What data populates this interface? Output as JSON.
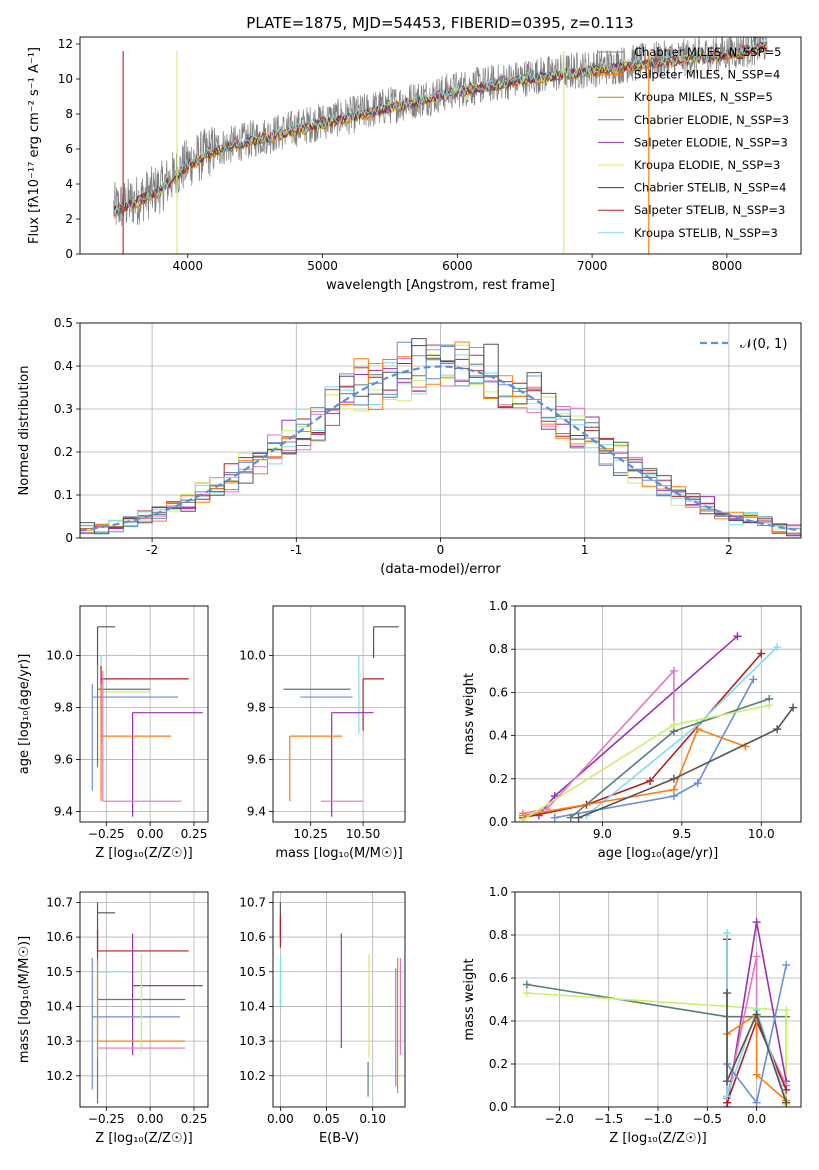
{
  "figure": {
    "title": "PLATE=1875, MJD=54453, FIBERID=0395, z=0.113"
  },
  "model_colors": [
    "#7f7f7f",
    "#ff7f0e",
    "#b8860b",
    "#4a7d5a",
    "#9b30b0",
    "#e6e64d",
    "#404040",
    "#b22222",
    "#80deea"
  ],
  "chart_data": [
    {
      "id": "spectrum",
      "type": "line",
      "xlabel": "wavelength [Angstrom, rest frame]",
      "ylabel": "Flux [fλ10⁻¹⁷ erg cm⁻² s⁻¹ A⁻¹]",
      "xlim": [
        3200,
        8550
      ],
      "ylim": [
        0,
        12.4
      ],
      "xticks": [
        4000,
        5000,
        6000,
        7000,
        8000
      ],
      "yticks": [
        0,
        2,
        4,
        6,
        8,
        10,
        12
      ],
      "grid": false,
      "legend_position": "top-right",
      "continuum_x": [
        3450,
        3600,
        3800,
        4000,
        4200,
        4500,
        4800,
        5000,
        5200,
        5500,
        5800,
        6000,
        6300,
        6600,
        6800,
        7000,
        7400,
        7800,
        8000,
        8300
      ],
      "continuum_y": [
        2.6,
        3.0,
        3.8,
        5.2,
        6.0,
        6.6,
        7.2,
        7.6,
        7.9,
        8.5,
        9.0,
        9.4,
        9.8,
        10.2,
        10.4,
        10.6,
        11.0,
        11.3,
        11.5,
        12.0
      ],
      "series": [
        {
          "name": "Chabrier MILES, N_SSP=5"
        },
        {
          "name": "Salpeter MILES, N_SSP=4"
        },
        {
          "name": "Kroupa MILES, N_SSP=5"
        },
        {
          "name": "Chabrier ELODIE, N_SSP=3"
        },
        {
          "name": "Salpeter ELODIE, N_SSP=3"
        },
        {
          "name": "Kroupa ELODIE, N_SSP=3"
        },
        {
          "name": "Chabrier STELIB, N_SSP=4"
        },
        {
          "name": "Salpeter STELIB, N_SSP=3"
        },
        {
          "name": "Kroupa STELIB, N_SSP=3"
        }
      ]
    },
    {
      "id": "residuals",
      "type": "line",
      "xlabel": "(data-model)/error",
      "ylabel": "Normed distribution",
      "xlim": [
        -2.5,
        2.5
      ],
      "ylim": [
        0,
        0.5
      ],
      "xticks": [
        -2,
        -1,
        0,
        1,
        2
      ],
      "yticks": [
        0.0,
        0.1,
        0.2,
        0.3,
        0.4,
        0.5
      ],
      "grid": true,
      "legend": [
        {
          "name": "𝒩(0, 1)",
          "color": "#5b8fd6"
        }
      ],
      "legend_position": "top-right",
      "histogram_bins": 50,
      "reference_curve": "N(0,1)"
    },
    {
      "id": "age_vs_Z",
      "type": "scatter",
      "xlabel": "Z [log₁₀(Z/Z☉)]",
      "ylabel": "age  [log₁₀(age/yr)]",
      "xlim": [
        -0.4,
        0.33
      ],
      "ylim": [
        9.36,
        10.19
      ],
      "xticks": [
        -0.25,
        0.0,
        0.25
      ],
      "xticklabels": [
        "−0.25",
        "0.00",
        "0.25"
      ],
      "yticks": [
        9.4,
        9.6,
        9.8,
        10.0
      ],
      "yticklabels": [
        "9.4",
        "9.6",
        "9.8",
        "10.0"
      ],
      "grid": true,
      "points": [
        {
          "x": -0.3,
          "xerr": [
            0.0,
            0.1
          ],
          "y": 10.11,
          "yerr": [
            0.15,
            0.0
          ],
          "color": "#555555"
        },
        {
          "x": -0.28,
          "xerr": [
            0.0,
            0.2
          ],
          "y": 10.0,
          "yerr": [
            0.2,
            0.0
          ],
          "color": "#80deea"
        },
        {
          "x": -0.3,
          "xerr": [
            0.0,
            0.3
          ],
          "y": 9.87,
          "yerr": [
            0.3,
            0.1
          ],
          "color": "#5a7d7a"
        },
        {
          "x": -0.28,
          "xerr": [
            0.0,
            0.28
          ],
          "y": 9.86,
          "yerr": [
            0.4,
            0.06
          ],
          "color": "#c9f06a"
        },
        {
          "x": -0.33,
          "xerr": [
            0.0,
            0.49
          ],
          "y": 9.84,
          "yerr": [
            0.36,
            0.05
          ],
          "color": "#6b8fd8"
        },
        {
          "x": -0.28,
          "xerr": [
            0.0,
            0.5
          ],
          "y": 9.91,
          "yerr": [
            0.25,
            0.05
          ],
          "color": "#b22222"
        },
        {
          "x": -0.1,
          "xerr": [
            0.0,
            0.4
          ],
          "y": 9.78,
          "yerr": [
            0.4,
            0.0
          ],
          "color": "#9b30b0"
        },
        {
          "x": -0.28,
          "xerr": [
            0.0,
            0.4
          ],
          "y": 9.69,
          "yerr": [
            0.25,
            0.2
          ],
          "color": "#ff7f0e"
        },
        {
          "x": -0.27,
          "xerr": [
            0.0,
            0.45
          ],
          "y": 9.44,
          "yerr": [
            0.0,
            0.5
          ],
          "color": "#e377c2"
        }
      ]
    },
    {
      "id": "age_vs_mass",
      "type": "scatter",
      "xlabel": "mass [log₁₀(M/M☉)]",
      "ylabel": "",
      "xlim": [
        10.07,
        10.7
      ],
      "ylim": [
        9.36,
        10.19
      ],
      "xticks": [
        10.25,
        10.5
      ],
      "xticklabels": [
        "10.25",
        "10.50"
      ],
      "yticks": [
        9.4,
        9.6,
        9.8,
        10.0
      ],
      "yticklabels": [
        "9.4",
        "9.6",
        "9.8",
        "10.0"
      ],
      "grid": true,
      "points": [
        {
          "x": 10.55,
          "xerr": [
            0.0,
            0.12
          ],
          "y": 10.11,
          "yerr": [
            0.12,
            0.0
          ],
          "color": "#555555"
        },
        {
          "x": 10.48,
          "xerr": [
            0.0,
            0.0
          ],
          "y": 10.0,
          "yerr": [
            0.3,
            0.0
          ],
          "color": "#80deea"
        },
        {
          "x": 10.12,
          "xerr": [
            0.0,
            0.32
          ],
          "y": 9.87,
          "yerr": [
            0.0,
            0.0
          ],
          "color": "#5a7d7a"
        },
        {
          "x": 10.2,
          "xerr": [
            0.0,
            0.25
          ],
          "y": 9.84,
          "yerr": [
            0.0,
            0.0
          ],
          "color": "#6b8fd8"
        },
        {
          "x": 10.5,
          "xerr": [
            0.0,
            0.1
          ],
          "y": 9.91,
          "yerr": [
            0.2,
            0.0
          ],
          "color": "#b22222"
        },
        {
          "x": 10.35,
          "xerr": [
            0.0,
            0.2
          ],
          "y": 9.78,
          "yerr": [
            0.4,
            0.0
          ],
          "color": "#9b30b0"
        },
        {
          "x": 10.15,
          "xerr": [
            0.0,
            0.25
          ],
          "y": 9.69,
          "yerr": [
            0.25,
            0.0
          ],
          "color": "#ff7f0e"
        },
        {
          "x": 10.3,
          "xerr": [
            0.0,
            0.2
          ],
          "y": 9.44,
          "yerr": [
            0.0,
            0.0
          ],
          "color": "#e377c2"
        }
      ]
    },
    {
      "id": "massweight_vs_age",
      "type": "line",
      "xlabel": "age  [log₁₀(age/yr)]",
      "ylabel": "mass weight",
      "xlim": [
        8.45,
        10.25
      ],
      "ylim": [
        0,
        1.0
      ],
      "xticks": [
        9.0,
        9.5,
        10.0
      ],
      "xticklabels": [
        "9.0",
        "9.5",
        "10.0"
      ],
      "yticks": [
        0.0,
        0.2,
        0.4,
        0.6,
        0.8,
        1.0
      ],
      "yticklabels": [
        "0.0",
        "0.2",
        "0.4",
        "0.6",
        "0.8",
        "1.0"
      ],
      "grid": true,
      "series": [
        {
          "color": "#9b30b0",
          "x": [
            8.6,
            8.7,
            9.85
          ],
          "y": [
            0.03,
            0.12,
            0.86
          ]
        },
        {
          "color": "#e377c2",
          "x": [
            8.5,
            8.65,
            9.45,
            9.45
          ],
          "y": [
            0.04,
            0.06,
            0.7,
            0.42
          ]
        },
        {
          "color": "#b22222",
          "x": [
            8.5,
            8.9,
            9.3,
            10.0
          ],
          "y": [
            0.02,
            0.08,
            0.19,
            0.78
          ]
        },
        {
          "color": "#80deea",
          "x": [
            8.9,
            9.6,
            10.1
          ],
          "y": [
            0.03,
            0.45,
            0.81
          ]
        },
        {
          "color": "#6b8fd8",
          "x": [
            8.7,
            9.45,
            9.6,
            9.95
          ],
          "y": [
            0.02,
            0.12,
            0.18,
            0.66
          ]
        },
        {
          "color": "#ff7f0e",
          "x": [
            8.5,
            9.45,
            9.6,
            9.9
          ],
          "y": [
            0.03,
            0.15,
            0.43,
            0.35
          ]
        },
        {
          "color": "#5a7d7a",
          "x": [
            8.8,
            9.45,
            10.05
          ],
          "y": [
            0.02,
            0.42,
            0.57
          ]
        },
        {
          "color": "#c9f06a",
          "x": [
            8.5,
            9.45,
            10.05
          ],
          "y": [
            0.01,
            0.45,
            0.54
          ]
        },
        {
          "color": "#555555",
          "x": [
            8.85,
            9.45,
            10.1,
            10.2
          ],
          "y": [
            0.02,
            0.2,
            0.43,
            0.53
          ]
        }
      ]
    },
    {
      "id": "mass_vs_Z",
      "type": "scatter",
      "xlabel": "Z [log₁₀(Z/Z☉)]",
      "ylabel": "mass [log₁₀(M/M☉)]",
      "xlim": [
        -0.4,
        0.33
      ],
      "ylim": [
        10.11,
        10.73
      ],
      "xticks": [
        -0.25,
        0.0,
        0.25
      ],
      "xticklabels": [
        "−0.25",
        "0.00",
        "0.25"
      ],
      "yticks": [
        10.2,
        10.3,
        10.4,
        10.5,
        10.6,
        10.7
      ],
      "yticklabels": [
        "10.2",
        "10.3",
        "10.4",
        "10.5",
        "10.6",
        "10.7"
      ],
      "grid": true,
      "points": [
        {
          "x": -0.3,
          "xerr": [
            0.0,
            0.1
          ],
          "y": 10.67,
          "yerr": [
            0.13,
            0.03
          ],
          "color": "#555555"
        },
        {
          "x": -0.3,
          "xerr": [
            0.0,
            0.52
          ],
          "y": 10.56,
          "yerr": [
            0.0,
            0.06
          ],
          "color": "#b22222"
        },
        {
          "x": -0.3,
          "xerr": [
            0.0,
            0.25
          ],
          "y": 10.5,
          "yerr": [
            0.0,
            0.0
          ],
          "color": "#80deea"
        },
        {
          "x": -0.1,
          "xerr": [
            0.0,
            0.4
          ],
          "y": 10.46,
          "yerr": [
            0.2,
            0.15
          ],
          "color": "#9b30b0"
        },
        {
          "x": -0.3,
          "xerr": [
            0.0,
            0.5
          ],
          "y": 10.42,
          "yerr": [
            0.3,
            0.12
          ],
          "color": "#5a7d7a"
        },
        {
          "x": -0.33,
          "xerr": [
            0.0,
            0.5
          ],
          "y": 10.37,
          "yerr": [
            0.21,
            0.17
          ],
          "color": "#6b8fd8"
        },
        {
          "x": -0.3,
          "xerr": [
            0.0,
            0.5
          ],
          "y": 10.3,
          "yerr": [
            0.05,
            0.23
          ],
          "color": "#ff7f0e"
        },
        {
          "x": -0.3,
          "xerr": [
            0.0,
            0.5
          ],
          "y": 10.28,
          "yerr": [
            0.0,
            0.0
          ],
          "color": "#e377c2"
        },
        {
          "x": -0.05,
          "xerr": [
            0.0,
            0.0
          ],
          "y": 10.42,
          "yerr": [
            0.15,
            0.13
          ],
          "color": "#c9f06a"
        }
      ]
    },
    {
      "id": "mass_vs_EBV",
      "type": "scatter",
      "xlabel": "E(B-V)",
      "ylabel": "",
      "xlim": [
        -0.008,
        0.135
      ],
      "ylim": [
        10.11,
        10.73
      ],
      "xticks": [
        0.0,
        0.05,
        0.1
      ],
      "xticklabels": [
        "0.00",
        "0.05",
        "0.10"
      ],
      "yticks": [
        10.2,
        10.3,
        10.4,
        10.5,
        10.6,
        10.7
      ],
      "yticklabels": [
        "10.2",
        "10.3",
        "10.4",
        "10.5",
        "10.6",
        "10.7"
      ],
      "grid": true,
      "points": [
        {
          "x": 0.0,
          "y": 10.65,
          "yerr": [
            0.05,
            0.05
          ],
          "color": "#555555"
        },
        {
          "x": 0.0,
          "y": 10.62,
          "yerr": [
            0.05,
            0.04
          ],
          "color": "#b22222"
        },
        {
          "x": 0.0,
          "y": 10.5,
          "yerr": [
            0.1,
            0.05
          ],
          "color": "#80deea"
        },
        {
          "x": 0.066,
          "y": 10.44,
          "yerr": [
            0.16,
            0.17
          ],
          "color": "#9b30b0"
        },
        {
          "x": 0.096,
          "y": 10.4,
          "yerr": [
            0.15,
            0.15
          ],
          "color": "#c9f06a"
        },
        {
          "x": 0.095,
          "y": 10.19,
          "yerr": [
            0.05,
            0.05
          ],
          "color": "#5a7d7a"
        },
        {
          "x": 0.125,
          "y": 10.37,
          "yerr": [
            0.2,
            0.14
          ],
          "color": "#6b8fd8"
        },
        {
          "x": 0.127,
          "y": 10.33,
          "yerr": [
            0.18,
            0.21
          ],
          "color": "#ff7f0e"
        },
        {
          "x": 0.13,
          "y": 10.4,
          "yerr": [
            0.14,
            0.14
          ],
          "color": "#e377c2"
        }
      ]
    },
    {
      "id": "massweight_vs_Z",
      "type": "line",
      "xlabel": "Z [log₁₀(Z/Z☉)]",
      "ylabel": "mass weight",
      "xlim": [
        -2.45,
        0.45
      ],
      "ylim": [
        0,
        1.0
      ],
      "xticks": [
        -2.0,
        -1.5,
        -1.0,
        -0.5,
        0.0
      ],
      "xticklabels": [
        "−2.0",
        "−1.5",
        "−1.0",
        "−0.5",
        "0.0"
      ],
      "yticks": [
        0.0,
        0.2,
        0.4,
        0.6,
        0.8,
        1.0
      ],
      "yticklabels": [
        "0.0",
        "0.2",
        "0.4",
        "0.6",
        "0.8",
        "1.0"
      ],
      "grid": true,
      "series": [
        {
          "color": "#5a7d7a",
          "x": [
            -2.33,
            -0.3,
            0.3,
            0.3
          ],
          "y": [
            0.57,
            0.42,
            0.42,
            0.02
          ]
        },
        {
          "color": "#c9f06a",
          "x": [
            -2.33,
            0.3,
            0.3
          ],
          "y": [
            0.53,
            0.45,
            0.01
          ]
        },
        {
          "color": "#9b30b0",
          "x": [
            -0.3,
            0.0,
            0.3
          ],
          "y": [
            0.0,
            0.86,
            0.12
          ]
        },
        {
          "color": "#e377c2",
          "x": [
            -0.3,
            0.0,
            0.0,
            0.3
          ],
          "y": [
            0.04,
            0.7,
            0.4,
            0.1
          ]
        },
        {
          "color": "#b22222",
          "x": [
            -0.3,
            -0.3,
            0.0,
            0.3
          ],
          "y": [
            0.78,
            0.02,
            0.4,
            0.08
          ]
        },
        {
          "color": "#80deea",
          "x": [
            -0.3,
            -0.3,
            0.0,
            0.3
          ],
          "y": [
            0.81,
            0.05,
            0.45,
            0.03
          ]
        },
        {
          "color": "#6b8fd8",
          "x": [
            -0.3,
            0.0,
            0.3
          ],
          "y": [
            0.2,
            0.02,
            0.66
          ]
        },
        {
          "color": "#ff7f0e",
          "x": [
            -0.3,
            0.0,
            0.0,
            0.3
          ],
          "y": [
            0.34,
            0.43,
            0.15,
            0.03
          ]
        },
        {
          "color": "#555555",
          "x": [
            -0.3,
            -0.3,
            0.0,
            0.3
          ],
          "y": [
            0.53,
            0.12,
            0.43,
            0.02
          ]
        }
      ]
    }
  ]
}
